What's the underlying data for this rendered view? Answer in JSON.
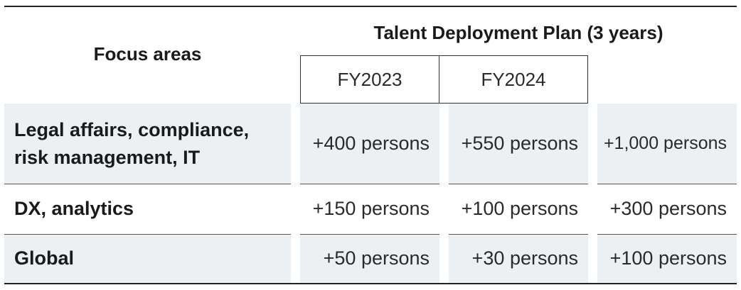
{
  "header": {
    "focus_areas": "Focus areas",
    "plan_title": "Talent Deployment Plan (3 years)",
    "years": [
      "FY2023",
      "FY2024"
    ]
  },
  "rows": [
    {
      "label_line1": "Legal affairs, compliance,",
      "label_line2": "risk management, IT",
      "fy2023": "+400 persons",
      "fy2024": "+550 persons",
      "total": "+1,000 persons"
    },
    {
      "label": "DX, analytics",
      "fy2023": "+150 persons",
      "fy2024": "+100 persons",
      "total": "+300 persons"
    },
    {
      "label": "Global",
      "fy2023": "+50 persons",
      "fy2024": "+30 persons",
      "total": "+100 persons"
    }
  ],
  "colors": {
    "row_shade": "#ecf0f2",
    "rule": "#222222",
    "text": "#1a1a1a"
  }
}
